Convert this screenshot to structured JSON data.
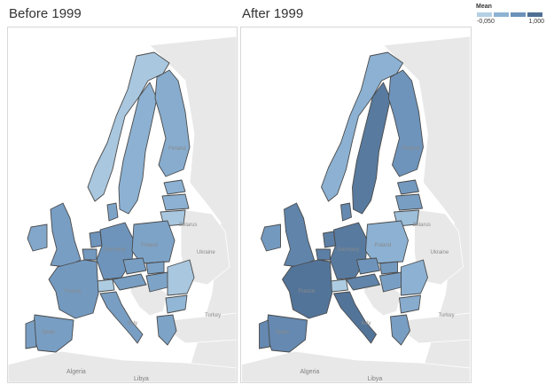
{
  "panels": [
    {
      "title": "Before 1999"
    },
    {
      "title": "After 1999"
    }
  ],
  "legend": {
    "title": "Mean",
    "min_label": "-0,050",
    "max_label": "1,000",
    "swatches": [
      "#b4d0e4",
      "#8eb3d3",
      "#6c92ba",
      "#4f6f93"
    ]
  },
  "colors": {
    "land_other": "#e8e8e8",
    "water": "#ffffff",
    "border_dark": "#4a4a4a",
    "border_light": "#ffffff"
  },
  "place_labels": {
    "finland": "Finland",
    "poland": "Poland",
    "belarus": "Belarus",
    "ukraine": "Ukraine",
    "germany": "Germany",
    "france": "France",
    "spain": "Spain",
    "italy": "Italy",
    "turkey": "Turkey",
    "algeria": "Algeria",
    "libya": "Libya"
  },
  "map_values": {
    "before": {
      "norway": 0.1,
      "sweden": 0.35,
      "finland": 0.4,
      "estonia": 0.35,
      "latvia": 0.35,
      "lithuania": 0.1,
      "poland": 0.5,
      "germany": 0.65,
      "denmark": 0.5,
      "netherlands": 0.65,
      "belgium": 0.6,
      "france": 0.6,
      "spain": 0.55,
      "portugal": 0.55,
      "italy": 0.55,
      "uk": 0.55,
      "ireland": 0.45,
      "austria": 0.55,
      "czech": 0.55,
      "slovakia": 0.5,
      "hungary": 0.5,
      "romania": 0.1,
      "bulgaria": 0.3,
      "greece": 0.5,
      "switzerland": 0.05
    },
    "after": {
      "norway": 0.35,
      "sweden": 0.9,
      "finland": 0.65,
      "estonia": 0.6,
      "latvia": 0.55,
      "lithuania": 0.2,
      "poland": 0.35,
      "germany": 0.9,
      "denmark": 0.75,
      "netherlands": 0.85,
      "belgium": 0.85,
      "france": 0.95,
      "spain": 0.75,
      "portugal": 0.75,
      "italy": 0.95,
      "uk": 0.8,
      "ireland": 0.6,
      "austria": 0.8,
      "czech": 0.65,
      "slovakia": 0.6,
      "hungary": 0.55,
      "romania": 0.35,
      "bulgaria": 0.4,
      "greece": 0.55,
      "switzerland": 0.05
    }
  }
}
